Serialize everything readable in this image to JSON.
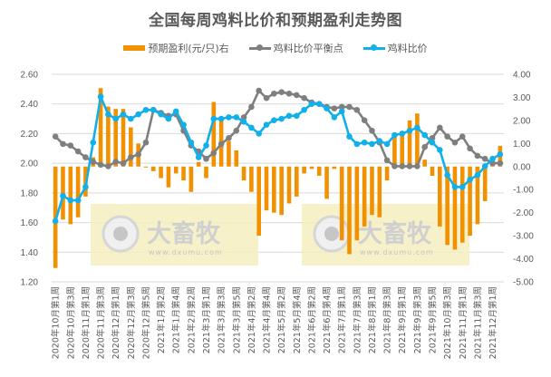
{
  "title": "全国每周鸡料比价和预期盈利走势图",
  "legend": {
    "profit": "预期盈利(元/只)右",
    "breakeven": "鸡料比价平衡点",
    "ratio": "鸡料比价"
  },
  "colors": {
    "profit": "#F29100",
    "breakeven": "#7F7F7F",
    "ratio": "#12B0EA",
    "grid": "#D9D9D9",
    "text": "#595959",
    "watermark_bg": "#F5EFC0"
  },
  "watermark": {
    "brand": "大畜牧",
    "url": "www.dxumu.com"
  },
  "chart_data": {
    "type": "bar+line",
    "title": "全国每周鸡料比价和预期盈利走势图",
    "left_axis": {
      "label": "",
      "ylim": [
        1.2,
        2.6
      ],
      "ticks": [
        "2.60",
        "2.40",
        "2.20",
        "2.00",
        "1.80",
        "1.60",
        "1.40",
        "1.20"
      ]
    },
    "right_axis": {
      "label": "",
      "ylim": [
        -5.0,
        4.0
      ],
      "ticks": [
        "4.00",
        "3.00",
        "2.00",
        "1.00",
        "0.00",
        "-1.00",
        "-2.00",
        "-3.00",
        "-4.00",
        "-5.00"
      ]
    },
    "grid": true,
    "legend_position": "top",
    "x_tick_labels": [
      "2020年10月第1周",
      "2020年10月第3周",
      "2020年11月第1周",
      "2020年11月第3周",
      "2020年12月第1周",
      "2020年12月第3周",
      "2020年12月第5周",
      "2021年1月第2周",
      "2021年1月第4周",
      "2021年2月第2周",
      "2021年3月第1周",
      "2021年3月第3周",
      "2021年3月第5周",
      "2021年4月第2周",
      "2021年4月第4周",
      "2021年5月第2周",
      "2021年5月第4周",
      "2021年6月第2周",
      "2021年6月第4周",
      "2021年7月第1周",
      "2021年7月第3周",
      "2021年8月第1周",
      "2021年8月第3周",
      "2021年9月第1周",
      "2021年9月第3周",
      "2021年9月第5周",
      "2021年10月第3周",
      "2021年11月第1周",
      "2021年11月第3周",
      "2021年12月第1周"
    ],
    "series": [
      {
        "name": "预期盈利(元/只)右",
        "type": "bar",
        "axis": "right",
        "values": [
          -4.4,
          -2.3,
          -2.5,
          -2.2,
          -1.3,
          0.4,
          3.4,
          2.6,
          2.5,
          2.5,
          1.7,
          1.0,
          0.0,
          -0.2,
          -0.5,
          -0.9,
          -0.3,
          -0.6,
          -1.1,
          0.2,
          -0.5,
          2.8,
          2.0,
          1.1,
          0.7,
          -0.6,
          -1.1,
          -3.0,
          -1.9,
          -2.0,
          -2.1,
          -1.6,
          -1.3,
          -0.3,
          -0.1,
          -0.4,
          -1.4,
          -0.1,
          -3.2,
          -3.8,
          -3.2,
          -2.6,
          -2.1,
          -2.2,
          -0.6,
          1.3,
          1.5,
          2.0,
          2.3,
          0.3,
          -0.4,
          -2.6,
          -3.4,
          -3.6,
          -3.3,
          -3.0,
          -2.5,
          -1.5,
          0.3,
          0.9
        ]
      },
      {
        "name": "鸡料比价平衡点",
        "type": "line",
        "axis": "left",
        "values": [
          2.18,
          2.13,
          2.12,
          2.08,
          2.04,
          2.01,
          1.99,
          1.98,
          2.01,
          2.0,
          2.04,
          2.06,
          2.14,
          2.36,
          2.34,
          2.32,
          2.33,
          2.22,
          2.12,
          2.08,
          2.03,
          2.07,
          2.13,
          2.17,
          2.22,
          2.31,
          2.38,
          2.49,
          2.44,
          2.47,
          2.48,
          2.47,
          2.46,
          2.44,
          2.41,
          2.4,
          2.38,
          2.37,
          2.38,
          2.38,
          2.36,
          2.29,
          2.22,
          2.14,
          2.02,
          1.98,
          1.98,
          1.98,
          1.98,
          2.11,
          2.17,
          2.24,
          2.18,
          2.14,
          2.18,
          2.1,
          2.05,
          2.03,
          2.0,
          2.0
        ]
      },
      {
        "name": "鸡料比价",
        "type": "line",
        "axis": "left",
        "values": [
          1.61,
          1.78,
          1.75,
          1.75,
          1.84,
          2.14,
          2.45,
          2.33,
          2.3,
          2.33,
          2.3,
          2.33,
          2.36,
          2.36,
          2.33,
          2.3,
          2.35,
          2.26,
          2.14,
          2.04,
          2.12,
          2.3,
          2.3,
          2.31,
          2.31,
          2.28,
          2.24,
          2.2,
          2.26,
          2.29,
          2.3,
          2.32,
          2.32,
          2.36,
          2.4,
          2.4,
          2.37,
          2.31,
          2.35,
          2.18,
          2.13,
          2.14,
          2.13,
          2.15,
          2.13,
          2.19,
          2.2,
          2.22,
          2.24,
          2.19,
          2.14,
          2.09,
          1.92,
          1.84,
          1.84,
          1.89,
          1.92,
          1.98,
          2.03,
          2.06
        ]
      }
    ]
  }
}
